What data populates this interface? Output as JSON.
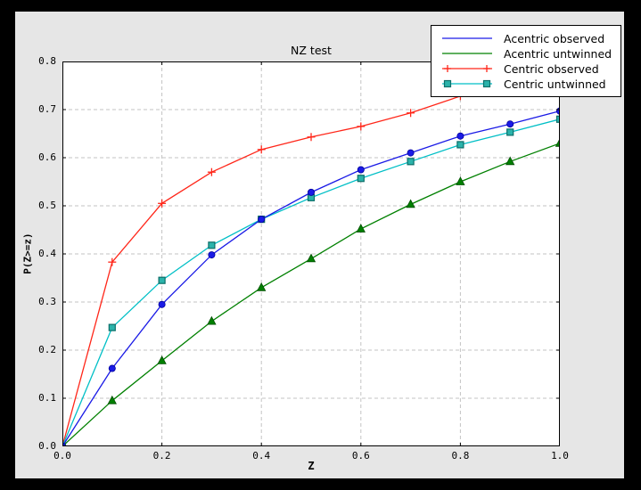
{
  "figure": {
    "background": "#e6e6e6",
    "plot_background": "#ffffff",
    "frame_color": "#000000",
    "grid_color": "#c3c3c3"
  },
  "chart_data": {
    "type": "line",
    "title": "NZ test",
    "xlabel": "Z",
    "ylabel": "P(Z>=z)",
    "xlim": [
      0.0,
      1.0
    ],
    "ylim": [
      0.0,
      0.8
    ],
    "grid": true,
    "legend_position": "upper right",
    "x_tick_values": [
      0.0,
      0.2,
      0.4,
      0.6,
      0.8,
      1.0
    ],
    "x_tick_labels": [
      "0.0",
      "0.2",
      "0.4",
      "0.6",
      "0.8",
      "1.0"
    ],
    "y_tick_values": [
      0.0,
      0.1,
      0.2,
      0.3,
      0.4,
      0.5,
      0.6,
      0.7,
      0.8
    ],
    "y_tick_labels": [
      "0.0",
      "0.1",
      "0.2",
      "0.3",
      "0.4",
      "0.5",
      "0.6",
      "0.7",
      "0.8"
    ],
    "x": [
      0.0,
      0.1,
      0.2,
      0.3,
      0.4,
      0.5,
      0.6,
      0.7,
      0.8,
      0.9,
      1.0
    ],
    "series": [
      {
        "name": "Acentric observed",
        "color": "#1a1ae6",
        "marker": "circle",
        "marker_fill": "#1a1ae6",
        "marker_edge": "#000099",
        "legend_markers": false,
        "values": [
          0.0,
          0.162,
          0.295,
          0.398,
          0.472,
          0.528,
          0.575,
          0.61,
          0.645,
          0.67,
          0.697
        ]
      },
      {
        "name": "Acentric untwinned",
        "color": "#008000",
        "marker": "triangle",
        "marker_fill": "#008000",
        "marker_edge": "#004d00",
        "legend_markers": false,
        "values": [
          0.0,
          0.095,
          0.178,
          0.26,
          0.33,
          0.39,
          0.452,
          0.503,
          0.55,
          0.592,
          0.63
        ]
      },
      {
        "name": "Centric observed",
        "color": "#ff2619",
        "marker": "plus",
        "marker_fill": "#ff2619",
        "marker_edge": "#ff2619",
        "legend_markers": true,
        "values": [
          0.0,
          0.383,
          0.505,
          0.57,
          0.617,
          0.643,
          0.665,
          0.693,
          0.728,
          0.748,
          0.762
        ]
      },
      {
        "name": "Centric untwinned",
        "color": "#00bfc6",
        "marker": "square",
        "marker_fill": "#2bb3ab",
        "marker_edge": "#0c6f69",
        "legend_markers": true,
        "values": [
          0.0,
          0.247,
          0.345,
          0.418,
          0.472,
          0.517,
          0.557,
          0.592,
          0.627,
          0.653,
          0.68
        ]
      }
    ]
  }
}
